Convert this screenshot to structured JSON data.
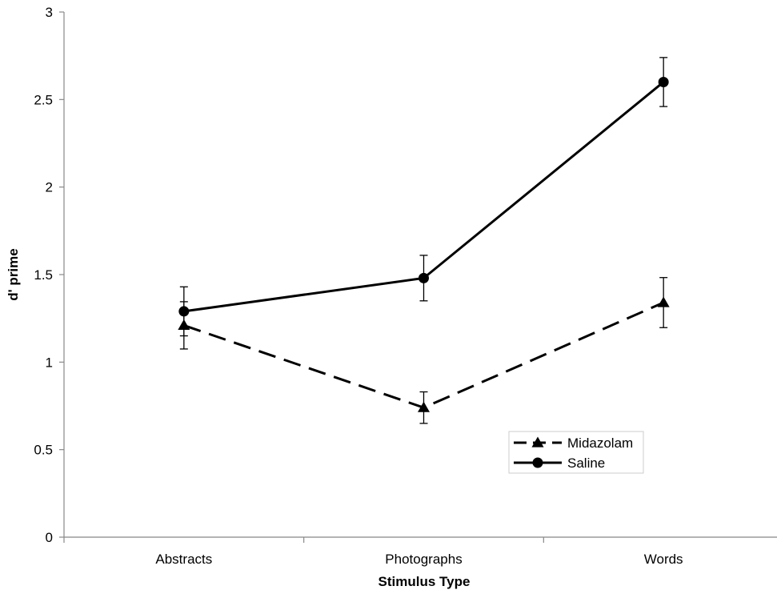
{
  "chart_data": {
    "type": "line",
    "title": "",
    "xlabel": "Stimulus Type",
    "ylabel": "d' prime",
    "categories": [
      "Abstracts",
      "Photographs",
      "Words"
    ],
    "ylim": [
      0,
      3
    ],
    "yticks": [
      0,
      0.5,
      1,
      1.5,
      2,
      2.5,
      3
    ],
    "ytick_labels": [
      "0",
      "0.5",
      "1",
      "1.5",
      "2",
      "2.5",
      "3"
    ],
    "grid": false,
    "legend_position": "bottom-right",
    "series": [
      {
        "name": "Midazolam",
        "values": [
          1.21,
          0.74,
          1.34
        ],
        "error": [
          0.135,
          0.09,
          0.143
        ],
        "marker": "triangle",
        "line_style": "dashed",
        "color": "#000000"
      },
      {
        "name": "Saline",
        "values": [
          1.29,
          1.48,
          2.6
        ],
        "error": [
          0.14,
          0.13,
          0.14
        ],
        "marker": "circle",
        "line_style": "solid",
        "color": "#000000"
      }
    ]
  }
}
